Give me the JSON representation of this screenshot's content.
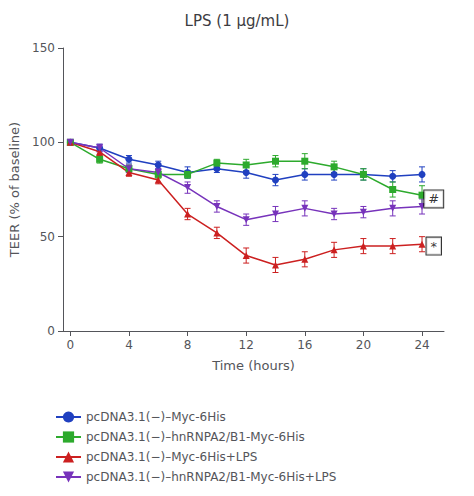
{
  "chart_data": {
    "type": "line",
    "title": "LPS (1 μg/mL)",
    "xlabel": "Time (hours)",
    "ylabel": "TEER (% of baseline)",
    "xlim": [
      -0.5,
      25.5
    ],
    "ylim": [
      0,
      150
    ],
    "xticks": [
      0,
      4,
      8,
      12,
      16,
      20,
      24
    ],
    "yticks": [
      0,
      50,
      100,
      150
    ],
    "grid": false,
    "legend": "bottom",
    "x": [
      0,
      2,
      4,
      6,
      8,
      10,
      12,
      14,
      16,
      18,
      20,
      22,
      24
    ],
    "series": [
      {
        "name": "pcDNA3.1(−)–Myc-6His",
        "color": "#2040c0",
        "marker": "circle",
        "values": [
          100,
          97,
          91,
          88,
          84,
          86,
          84,
          80,
          83,
          83,
          83,
          82,
          83
        ],
        "yerr": [
          1,
          2,
          2,
          2,
          3,
          2,
          3,
          3,
          3,
          3,
          3,
          3,
          4
        ]
      },
      {
        "name": "pcDNA3.1(−)–hnRNPA2/B1-Myc-6His",
        "color": "#2daa2d",
        "marker": "square",
        "values": [
          100,
          91,
          86,
          83,
          83,
          89,
          88,
          90,
          90,
          87,
          83,
          75,
          72
        ],
        "yerr": [
          1,
          2,
          2,
          2,
          2,
          2,
          3,
          3,
          4,
          3,
          3,
          4,
          5
        ]
      },
      {
        "name": "pcDNA3.1(−)–Myc-6His+LPS",
        "color": "#cc2020",
        "marker": "triangle_up",
        "values": [
          100,
          95,
          84,
          80,
          62,
          52,
          40,
          35,
          38,
          43,
          45,
          45,
          46
        ],
        "yerr": [
          1,
          2,
          2,
          2,
          3,
          3,
          4,
          4,
          4,
          4,
          4,
          4,
          4
        ]
      },
      {
        "name": "pcDNA3.1(−)–hnRNPA2/B1-Myc-6His+LPS",
        "color": "#7733bb",
        "marker": "triangle_down",
        "values": [
          100,
          97,
          86,
          84,
          76,
          66,
          59,
          62,
          65,
          62,
          63,
          65,
          66
        ],
        "yerr": [
          1,
          2,
          2,
          2,
          3,
          3,
          3,
          4,
          4,
          3,
          3,
          4,
          4
        ]
      }
    ],
    "annotations": [
      {
        "text": "#",
        "x": 24.8,
        "y": 70
      },
      {
        "text": "*",
        "x": 24.8,
        "y": 45
      }
    ]
  }
}
